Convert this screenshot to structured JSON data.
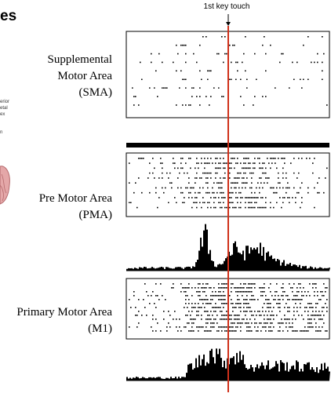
{
  "header": {
    "title": "es"
  },
  "side_snippet": [
    "erior",
    "etal",
    "ex",
    "n"
  ],
  "figure": {
    "marker_label": "1st key touch",
    "panels": [
      {
        "label_lines": [
          "Supplemental",
          "Motor Area",
          "(SMA)"
        ]
      },
      {
        "label_lines": [
          "Pre Motor Area",
          "(PMA)"
        ]
      },
      {
        "label_lines": [
          "Primary Motor Area",
          "(M1)"
        ]
      }
    ]
  }
}
